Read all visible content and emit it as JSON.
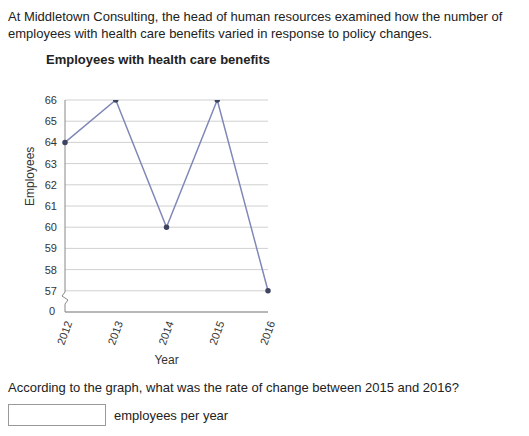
{
  "intro": "At Middletown Consulting, the head of human resources examined how the number of employees with health care benefits varied in response to policy changes.",
  "question": "According to the graph, what was the rate of change between 2015 and 2016?",
  "answer_unit": "employees per year",
  "chart_data": {
    "type": "line",
    "title": "Employees with health care benefits",
    "x_label": "Year",
    "y_label": "Employees",
    "categories": [
      "2012",
      "2013",
      "2014",
      "2015",
      "2016"
    ],
    "values": [
      64,
      66,
      60,
      66,
      57
    ],
    "color": "#8088b8",
    "marker": "circle",
    "ylim": [
      56,
      66
    ],
    "yticks": [
      57,
      58,
      59,
      60,
      61,
      62,
      63,
      64,
      65,
      66
    ],
    "grid": true,
    "annotations": [
      "0"
    ]
  }
}
